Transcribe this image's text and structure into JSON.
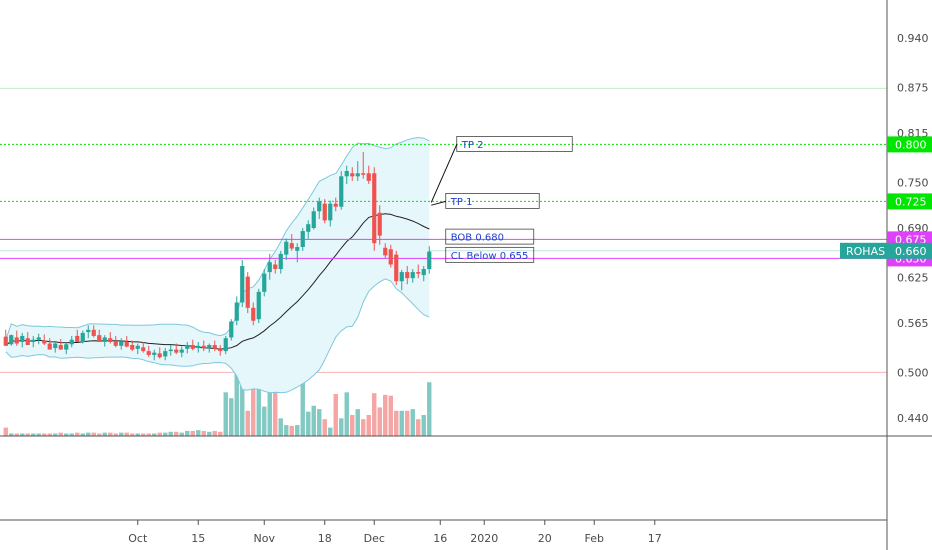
{
  "chart_data": {
    "type": "candlestick",
    "symbol": "ROHAS",
    "ylim": [
      0.4196,
      1.0
    ],
    "y_ticks": [
      "0.940",
      "0.875",
      "0.815",
      "0.750",
      "0.690",
      "0.625",
      "0.565",
      "0.500",
      "0.440"
    ],
    "y_tick_values": [
      0.94,
      0.875,
      0.815,
      0.75,
      0.69,
      0.625,
      0.565,
      0.5,
      0.44
    ],
    "x_ticks": [
      {
        "label": "Oct",
        "t": 24
      },
      {
        "label": "15",
        "t": 35
      },
      {
        "label": "Nov",
        "t": 47
      },
      {
        "label": "18",
        "t": 58
      },
      {
        "label": "Dec",
        "t": 67
      },
      {
        "label": "16",
        "t": 79
      },
      {
        "label": "2020",
        "t": 87
      },
      {
        "label": "20",
        "t": 98
      },
      {
        "label": "Feb",
        "t": 107
      },
      {
        "label": "17",
        "t": 118
      }
    ],
    "candles": [
      [
        0.547,
        0.556,
        0.539,
        0.535
      ],
      [
        0.537,
        0.55,
        0.535,
        0.549
      ],
      [
        0.546,
        0.555,
        0.535,
        0.538
      ],
      [
        0.54,
        0.552,
        0.533,
        0.548
      ],
      [
        0.545,
        0.553,
        0.538,
        0.536
      ],
      [
        0.54,
        0.548,
        0.533,
        0.543
      ],
      [
        0.543,
        0.551,
        0.537,
        0.546
      ],
      [
        0.542,
        0.55,
        0.536,
        0.538
      ],
      [
        0.538,
        0.545,
        0.531,
        0.53
      ],
      [
        0.532,
        0.54,
        0.526,
        0.538
      ],
      [
        0.536,
        0.544,
        0.53,
        0.53
      ],
      [
        0.53,
        0.538,
        0.524,
        0.537
      ],
      [
        0.537,
        0.548,
        0.533,
        0.543
      ],
      [
        0.548,
        0.556,
        0.54,
        0.54
      ],
      [
        0.54,
        0.555,
        0.538,
        0.552
      ],
      [
        0.553,
        0.562,
        0.545,
        0.556
      ],
      [
        0.556,
        0.562,
        0.546,
        0.548
      ],
      [
        0.549,
        0.556,
        0.54,
        0.54
      ],
      [
        0.54,
        0.549,
        0.534,
        0.546
      ],
      [
        0.545,
        0.553,
        0.538,
        0.54
      ],
      [
        0.541,
        0.548,
        0.533,
        0.535
      ],
      [
        0.535,
        0.545,
        0.53,
        0.541
      ],
      [
        0.54,
        0.548,
        0.533,
        0.534
      ],
      [
        0.536,
        0.542,
        0.528,
        0.53
      ],
      [
        0.531,
        0.538,
        0.524,
        0.535
      ],
      [
        0.533,
        0.54,
        0.526,
        0.528
      ],
      [
        0.528,
        0.535,
        0.52,
        0.523
      ],
      [
        0.523,
        0.53,
        0.516,
        0.526
      ],
      [
        0.525,
        0.533,
        0.518,
        0.52
      ],
      [
        0.521,
        0.532,
        0.516,
        0.528
      ],
      [
        0.528,
        0.536,
        0.522,
        0.53
      ],
      [
        0.53,
        0.538,
        0.524,
        0.526
      ],
      [
        0.526,
        0.534,
        0.52,
        0.53
      ],
      [
        0.531,
        0.54,
        0.525,
        0.536
      ],
      [
        0.536,
        0.543,
        0.529,
        0.531
      ],
      [
        0.532,
        0.54,
        0.526,
        0.535
      ],
      [
        0.535,
        0.542,
        0.528,
        0.532
      ],
      [
        0.532,
        0.538,
        0.526,
        0.536
      ],
      [
        0.536,
        0.542,
        0.528,
        0.531
      ],
      [
        0.531,
        0.536,
        0.522,
        0.528
      ],
      [
        0.528,
        0.548,
        0.524,
        0.545
      ],
      [
        0.546,
        0.57,
        0.542,
        0.567
      ],
      [
        0.568,
        0.6,
        0.562,
        0.592
      ],
      [
        0.592,
        0.648,
        0.586,
        0.64
      ],
      [
        0.626,
        0.632,
        0.578,
        0.585
      ],
      [
        0.585,
        0.592,
        0.562,
        0.568
      ],
      [
        0.57,
        0.61,
        0.565,
        0.606
      ],
      [
        0.606,
        0.636,
        0.6,
        0.63
      ],
      [
        0.632,
        0.656,
        0.622,
        0.645
      ],
      [
        0.642,
        0.648,
        0.63,
        0.636
      ],
      [
        0.636,
        0.66,
        0.63,
        0.656
      ],
      [
        0.655,
        0.676,
        0.648,
        0.672
      ],
      [
        0.67,
        0.682,
        0.66,
        0.663
      ],
      [
        0.66,
        0.67,
        0.645,
        0.665
      ],
      [
        0.665,
        0.69,
        0.66,
        0.686
      ],
      [
        0.685,
        0.7,
        0.676,
        0.695
      ],
      [
        0.69,
        0.717,
        0.688,
        0.712
      ],
      [
        0.712,
        0.73,
        0.702,
        0.725
      ],
      [
        0.722,
        0.728,
        0.696,
        0.7
      ],
      [
        0.7,
        0.726,
        0.692,
        0.722
      ],
      [
        0.722,
        0.73,
        0.712,
        0.718
      ],
      [
        0.718,
        0.765,
        0.714,
        0.758
      ],
      [
        0.758,
        0.772,
        0.748,
        0.765
      ],
      [
        0.762,
        0.77,
        0.752,
        0.758
      ],
      [
        0.758,
        0.778,
        0.752,
        0.762
      ],
      [
        0.762,
        0.79,
        0.755,
        0.76
      ],
      [
        0.762,
        0.772,
        0.748,
        0.752
      ],
      [
        0.762,
        0.77,
        0.66,
        0.67
      ],
      [
        0.71,
        0.72,
        0.668,
        0.68
      ],
      [
        0.664,
        0.67,
        0.65,
        0.654
      ],
      [
        0.662,
        0.668,
        0.638,
        0.642
      ],
      [
        0.655,
        0.66,
        0.615,
        0.62
      ],
      [
        0.62,
        0.635,
        0.608,
        0.632
      ],
      [
        0.632,
        0.64,
        0.616,
        0.624
      ],
      [
        0.624,
        0.636,
        0.618,
        0.632
      ],
      [
        0.632,
        0.642,
        0.624,
        0.63
      ],
      [
        0.628,
        0.64,
        0.62,
        0.636
      ],
      [
        0.636,
        0.666,
        0.63,
        0.659
      ]
    ],
    "volume_relative": [
      0.1,
      0.03,
      0.03,
      0.03,
      0.03,
      0.03,
      0.03,
      0.03,
      0.03,
      0.03,
      0.04,
      0.03,
      0.03,
      0.04,
      0.03,
      0.04,
      0.04,
      0.03,
      0.04,
      0.04,
      0.03,
      0.04,
      0.04,
      0.03,
      0.03,
      0.03,
      0.03,
      0.03,
      0.04,
      0.04,
      0.05,
      0.05,
      0.04,
      0.06,
      0.06,
      0.07,
      0.06,
      0.05,
      0.06,
      0.05,
      0.52,
      0.45,
      0.97,
      0.95,
      0.3,
      0.6,
      0.62,
      0.35,
      0.56,
      0.55,
      0.21,
      0.13,
      0.12,
      0.13,
      0.87,
      0.29,
      0.36,
      0.32,
      0.2,
      0.1,
      0.5,
      0.21,
      0.52,
      0.25,
      0.32,
      0.2,
      0.25,
      0.51,
      0.34,
      0.49,
      0.48,
      0.3,
      0.3,
      0.3,
      0.32,
      0.2,
      0.25,
      0.64
    ],
    "levels": [
      {
        "price": 0.8,
        "label": "0.800",
        "color": "#00e600",
        "style": "dotted"
      },
      {
        "price": 0.725,
        "label": "0.725",
        "color": "#00e600",
        "style": "dotted"
      },
      {
        "price": 0.675,
        "label": "0.675",
        "color": "#e040fb",
        "style": "solid"
      },
      {
        "price": 0.65,
        "label": "0.650",
        "color": "#e040fb",
        "style": "solid"
      },
      {
        "price": 0.66,
        "label": "0.660",
        "color": "#26a69a",
        "style": "last"
      }
    ],
    "annotations": [
      {
        "text": "TP 2",
        "price": 0.8,
        "t0": 82,
        "t1": 103
      },
      {
        "text": "TP 1",
        "price": 0.725,
        "t0": 80,
        "t1": 97
      },
      {
        "text": "BOB 0.680",
        "price": 0.678,
        "t0": 80,
        "t1": 96
      },
      {
        "text": "CL Below 0.655",
        "price": 0.654,
        "t0": 80,
        "t1": 96
      }
    ],
    "current_price_label": "0.660",
    "colors": {
      "up": "#26a69a",
      "down": "#ef5350",
      "band_fill": "#e6f7fb",
      "band_line": "#7ec8dc",
      "ma_line": "#222222",
      "vol_up": "#82c9c3",
      "vol_down": "#f4a5a4"
    }
  }
}
